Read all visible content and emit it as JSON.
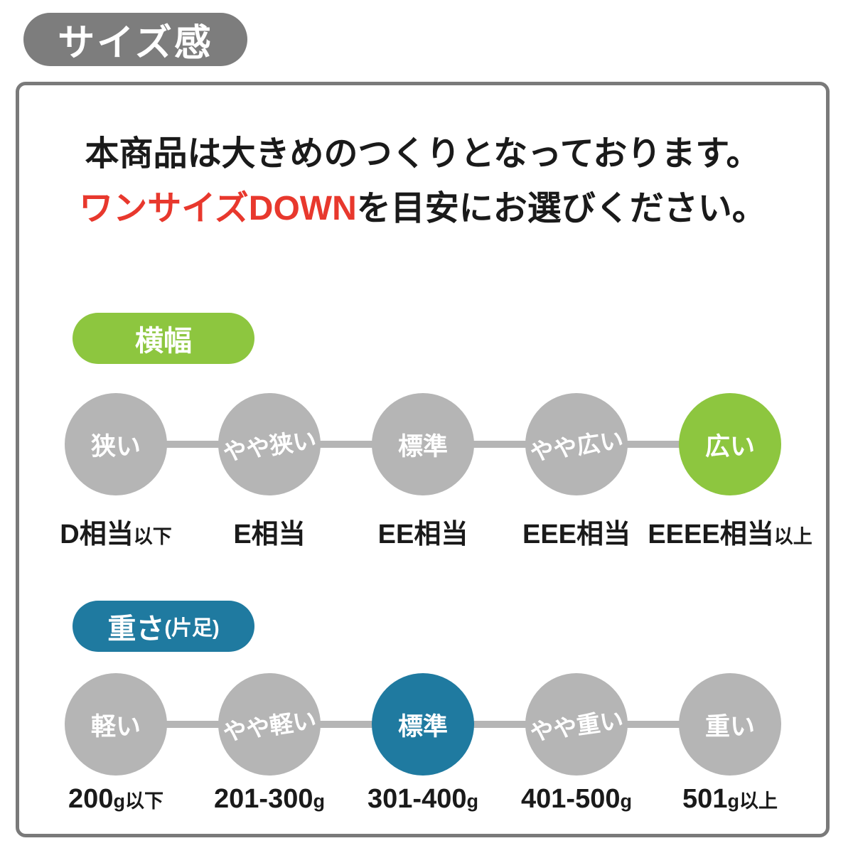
{
  "header": {
    "title": "サイズ感"
  },
  "intro": {
    "line1": "本商品は大きめのつくりとなっております。",
    "line2_highlight": "ワンサイズDOWN",
    "line2_rest": "を目安にお選びください。"
  },
  "colors": {
    "accent_green": "#8DC63F",
    "accent_teal": "#1F7AA0",
    "highlight_red": "#E8382D",
    "neutral_gray": "#B5B5B5",
    "badge_gray": "#7D7D7D",
    "border_gray": "#7A7A7A"
  },
  "width_section": {
    "badge_label": "横幅",
    "badge_label_suffix": "",
    "accent": "green",
    "scale": [
      {
        "label": "狭い",
        "sub_main": "D相当",
        "sub_small": "以下",
        "active": false,
        "tilted": false
      },
      {
        "label": "やや狭い",
        "sub_main": "E相当",
        "sub_small": "",
        "active": false,
        "tilted": true
      },
      {
        "label": "標準",
        "sub_main": "EE相当",
        "sub_small": "",
        "active": false,
        "tilted": false
      },
      {
        "label": "やや広い",
        "sub_main": "EEE相当",
        "sub_small": "",
        "active": false,
        "tilted": true
      },
      {
        "label": "広い",
        "sub_main": "EEEE相当",
        "sub_small": "以上",
        "active": true,
        "tilted": false
      }
    ]
  },
  "weight_section": {
    "badge_label": "重さ",
    "badge_label_suffix": "(片足)",
    "accent": "teal",
    "scale": [
      {
        "label": "軽い",
        "sub_main": "200",
        "sub_small": "g以下",
        "active": false,
        "tilted": false
      },
      {
        "label": "やや軽い",
        "sub_main": "201-300",
        "sub_small": "g",
        "active": false,
        "tilted": true
      },
      {
        "label": "標準",
        "sub_main": "301-400",
        "sub_small": "g",
        "active": true,
        "tilted": false
      },
      {
        "label": "やや重い",
        "sub_main": "401-500",
        "sub_small": "g",
        "active": false,
        "tilted": true
      },
      {
        "label": "重い",
        "sub_main": "501",
        "sub_small": "g以上",
        "active": false,
        "tilted": false
      }
    ]
  }
}
